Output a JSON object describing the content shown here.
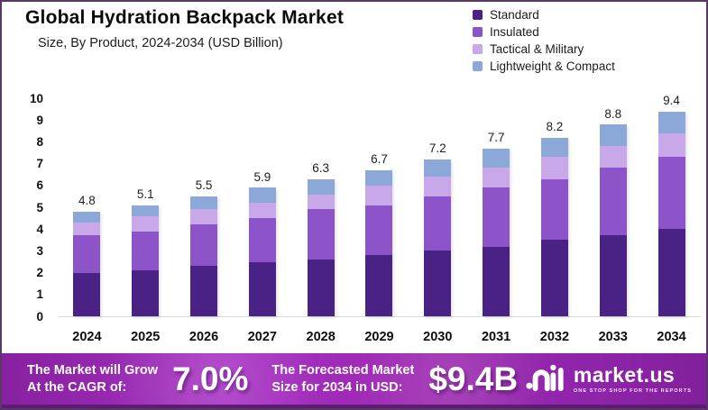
{
  "header": {
    "title": "Global Hydration Backpack Market",
    "subtitle": "Size, By Product, 2024-2034 (USD Billion)"
  },
  "chart_data": {
    "type": "bar",
    "stacked": true,
    "title": "Global Hydration Backpack Market Size, By Product, 2024-2034 (USD Billion)",
    "categories": [
      "2024",
      "2025",
      "2026",
      "2027",
      "2028",
      "2029",
      "2030",
      "2031",
      "2032",
      "2033",
      "2034"
    ],
    "series": [
      {
        "name": "Standard",
        "color": "#4a2185",
        "values": [
          2.0,
          2.1,
          2.3,
          2.5,
          2.6,
          2.8,
          3.0,
          3.2,
          3.5,
          3.7,
          4.0
        ]
      },
      {
        "name": "Insulated",
        "color": "#8c54c8",
        "values": [
          1.7,
          1.8,
          1.9,
          2.0,
          2.3,
          2.3,
          2.5,
          2.7,
          2.8,
          3.1,
          3.3
        ]
      },
      {
        "name": "Tactical & Military",
        "color": "#c8a8e8",
        "values": [
          0.6,
          0.7,
          0.7,
          0.7,
          0.7,
          0.9,
          0.9,
          0.9,
          1.0,
          1.0,
          1.1
        ]
      },
      {
        "name": "Lightweight & Compact",
        "color": "#8ca8d8",
        "values": [
          0.5,
          0.5,
          0.6,
          0.7,
          0.7,
          0.7,
          0.8,
          0.9,
          0.9,
          1.0,
          1.0
        ]
      }
    ],
    "totals": [
      4.8,
      5.1,
      5.5,
      5.9,
      6.3,
      6.7,
      7.2,
      7.7,
      8.2,
      8.8,
      9.4
    ],
    "xlabel": "",
    "ylabel": "",
    "ylim": [
      0,
      10
    ],
    "yticks": [
      0,
      1,
      2,
      3,
      4,
      5,
      6,
      7,
      8,
      9,
      10
    ],
    "grid": false,
    "legend_position": "top-right",
    "bar_value_labels": "totals shown above each bar"
  },
  "banner": {
    "cagr_label_line1": "The Market will Grow",
    "cagr_label_line2": "At the CAGR of:",
    "cagr_value": "7.0%",
    "forecast_label_line1": "The Forecasted Market",
    "forecast_label_line2": "Size for 2034 in USD:",
    "forecast_value": "$9.4B",
    "brand": {
      "icon": "market-us-logo-icon",
      "name": "market.us",
      "tagline": "ONE STOP SHOP FOR THE REPORTS"
    }
  },
  "colors": {
    "page_border": "#5a3768",
    "banner_gradient_start": "#87219f",
    "banner_gradient_mid": "#a62fc3",
    "banner_bottom_strip": "#5e1b74",
    "axis_baseline": "#dadada"
  }
}
